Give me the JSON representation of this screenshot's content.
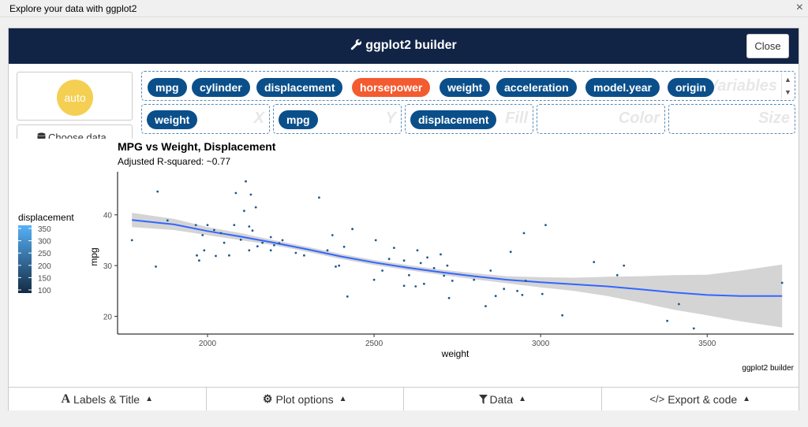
{
  "window": {
    "title": "Explore your data with ggplot2",
    "close_glyph": "×"
  },
  "header": {
    "title": "ggplot2 builder",
    "close_label": "Close"
  },
  "sidebar": {
    "auto_label": "auto",
    "choose_data_label": "Choose data"
  },
  "variables": {
    "ghost_label": "Variables",
    "items": [
      {
        "label": "mpg",
        "highlight": false
      },
      {
        "label": "cylinder",
        "highlight": false
      },
      {
        "label": "displacement",
        "highlight": false
      },
      {
        "label": "horsepower",
        "highlight": true
      },
      {
        "label": "weight",
        "highlight": false
      },
      {
        "label": "acceleration",
        "highlight": false
      },
      {
        "label": "model.year",
        "highlight": false
      },
      {
        "label": "origin",
        "highlight": false
      }
    ]
  },
  "aesthetics": {
    "x": {
      "label": "X",
      "value": "weight"
    },
    "y": {
      "label": "Y",
      "value": "mpg"
    },
    "fill": {
      "label": "Fill",
      "value": "displacement"
    },
    "color": {
      "label": "Color",
      "value": ""
    },
    "size": {
      "label": "Size",
      "value": ""
    }
  },
  "footer": {
    "labels_title": "Labels & Title",
    "plot_options": "Plot options",
    "data": "Data",
    "export_code": "Export & code"
  },
  "chart_data": {
    "type": "scatter",
    "title": "MPG vs Weight, Displacement",
    "subtitle": "Adjusted R-squared: ~0.77",
    "xlabel": "weight",
    "ylabel": "mpg",
    "caption": "ggplot2 builder",
    "xlim": [
      1730,
      3760
    ],
    "ylim": [
      16.5,
      48.5
    ],
    "xticks": [
      2000,
      2500,
      3000,
      3500
    ],
    "yticks": [
      20,
      30,
      40
    ],
    "grid": false,
    "legend": {
      "title": "displacement",
      "position": "left",
      "values": [
        350,
        300,
        250,
        200,
        150,
        100
      ],
      "colors": {
        "low": "#132b43",
        "high": "#56b1f7"
      }
    },
    "points": [
      [
        1773,
        35.0
      ],
      [
        1850,
        44.6
      ],
      [
        1845,
        29.8
      ],
      [
        1880,
        38.9
      ],
      [
        1965,
        38.0
      ],
      [
        1968,
        32.0
      ],
      [
        1975,
        31.0
      ],
      [
        1985,
        36.0
      ],
      [
        1990,
        33.0
      ],
      [
        2000,
        38.0
      ],
      [
        2020,
        37.0
      ],
      [
        2025,
        31.9
      ],
      [
        2040,
        36.4
      ],
      [
        2050,
        34.5
      ],
      [
        2065,
        32.0
      ],
      [
        2080,
        38.0
      ],
      [
        2085,
        44.3
      ],
      [
        2100,
        35.1
      ],
      [
        2110,
        40.8
      ],
      [
        2115,
        46.6
      ],
      [
        2125,
        33.0
      ],
      [
        2125,
        37.7
      ],
      [
        2130,
        44.0
      ],
      [
        2135,
        36.9
      ],
      [
        2145,
        41.5
      ],
      [
        2150,
        33.8
      ],
      [
        2165,
        34.5
      ],
      [
        2190,
        33.0
      ],
      [
        2190,
        35.6
      ],
      [
        2200,
        34.0
      ],
      [
        2215,
        34.4
      ],
      [
        2225,
        35.0
      ],
      [
        2265,
        32.5
      ],
      [
        2290,
        32.0
      ],
      [
        2335,
        43.4
      ],
      [
        2360,
        33.0
      ],
      [
        2375,
        36.0
      ],
      [
        2385,
        29.8
      ],
      [
        2395,
        30.0
      ],
      [
        2410,
        33.7
      ],
      [
        2420,
        23.9
      ],
      [
        2435,
        37.2
      ],
      [
        2500,
        27.2
      ],
      [
        2505,
        35.0
      ],
      [
        2525,
        29.0
      ],
      [
        2545,
        31.3
      ],
      [
        2560,
        33.5
      ],
      [
        2590,
        26.0
      ],
      [
        2590,
        31.0
      ],
      [
        2605,
        28.1
      ],
      [
        2625,
        25.9
      ],
      [
        2630,
        33.0
      ],
      [
        2640,
        30.5
      ],
      [
        2650,
        26.4
      ],
      [
        2660,
        31.6
      ],
      [
        2680,
        29.5
      ],
      [
        2700,
        32.2
      ],
      [
        2710,
        28.0
      ],
      [
        2720,
        30.0
      ],
      [
        2725,
        23.6
      ],
      [
        2735,
        27.0
      ],
      [
        2800,
        27.2
      ],
      [
        2835,
        22.0
      ],
      [
        2850,
        29.0
      ],
      [
        2865,
        24.0
      ],
      [
        2890,
        25.4
      ],
      [
        2910,
        32.7
      ],
      [
        2930,
        25.0
      ],
      [
        2945,
        24.2
      ],
      [
        2950,
        36.4
      ],
      [
        2955,
        27.0
      ],
      [
        3005,
        24.4
      ],
      [
        3015,
        38.0
      ],
      [
        3065,
        20.2
      ],
      [
        3160,
        30.7
      ],
      [
        3230,
        28.1
      ],
      [
        3250,
        30.0
      ],
      [
        3380,
        19.1
      ],
      [
        3415,
        22.4
      ],
      [
        3460,
        17.6
      ],
      [
        3725,
        26.6
      ]
    ],
    "smooth": {
      "x": [
        1773,
        1900,
        2000,
        2100,
        2200,
        2300,
        2400,
        2500,
        2600,
        2700,
        2800,
        2900,
        3000,
        3100,
        3200,
        3300,
        3400,
        3500,
        3600,
        3725
      ],
      "y": [
        39.0,
        38.1,
        36.8,
        35.7,
        34.5,
        33.2,
        31.8,
        30.6,
        29.6,
        28.7,
        27.9,
        27.2,
        26.7,
        26.3,
        25.9,
        25.3,
        24.7,
        24.2,
        24.0,
        24.0
      ],
      "lower": [
        37.6,
        37.0,
        36.0,
        35.0,
        34.0,
        32.7,
        31.3,
        30.1,
        29.1,
        28.2,
        27.3,
        26.5,
        25.7,
        25.0,
        24.0,
        22.7,
        21.3,
        20.2,
        19.0,
        17.8
      ],
      "upper": [
        40.4,
        39.2,
        37.6,
        36.4,
        35.0,
        33.7,
        32.3,
        31.1,
        30.1,
        29.2,
        28.5,
        27.9,
        27.7,
        27.6,
        27.8,
        27.9,
        28.1,
        28.2,
        29.0,
        30.2
      ]
    }
  }
}
